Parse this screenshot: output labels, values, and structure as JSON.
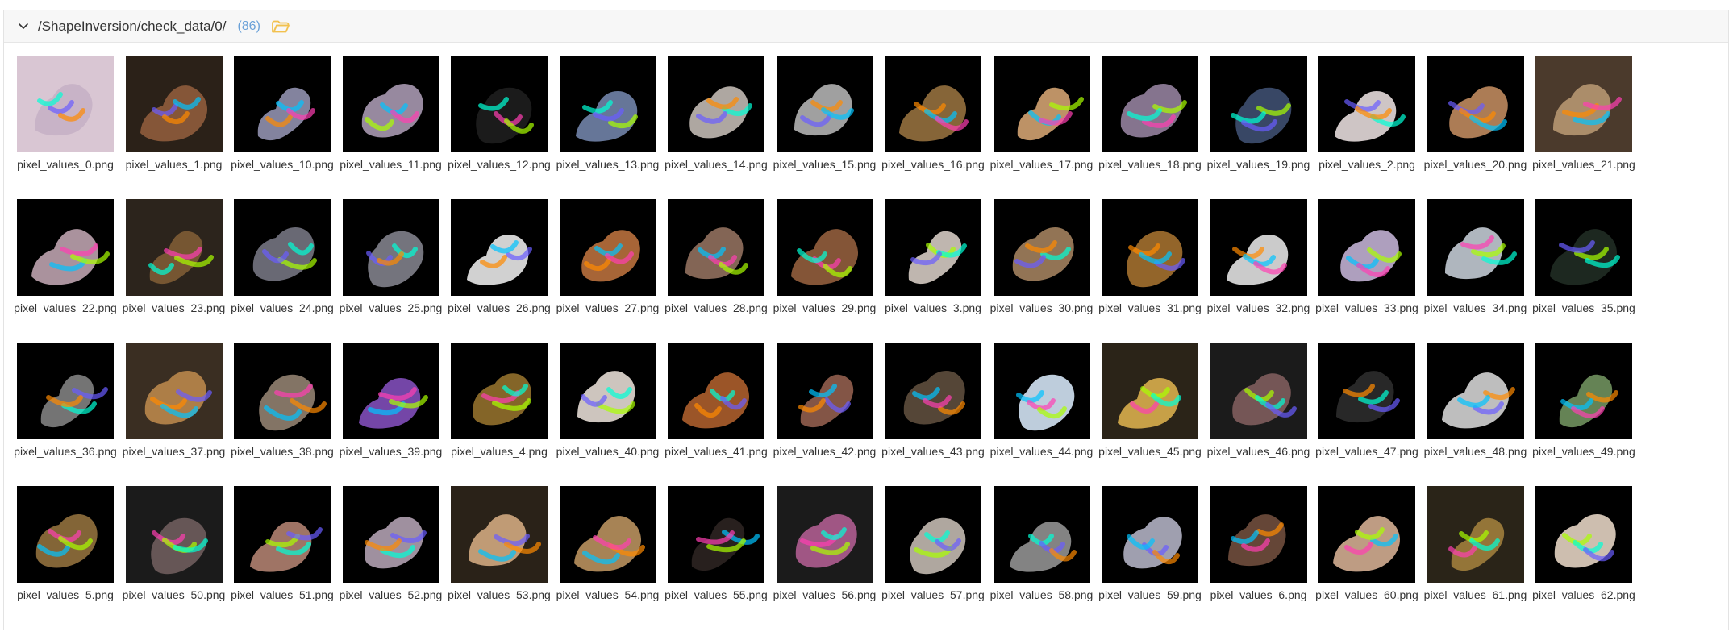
{
  "header": {
    "path": "/ShapeInversion/check_data/0/",
    "count": "(86)"
  },
  "colors": {
    "accent": "#6aa1d8",
    "folder": "#f2c14e"
  },
  "files": [
    {
      "name": "pixel_values_0.png",
      "bg": "#d9c6d3",
      "blob": "#c7b2c6"
    },
    {
      "name": "pixel_values_1.png",
      "bg": "#2b2118",
      "blob": "#8a5a3a"
    },
    {
      "name": "pixel_values_10.png",
      "bg": "#000000",
      "blob": "#8a8aa6"
    },
    {
      "name": "pixel_values_11.png",
      "bg": "#000000",
      "blob": "#9f90a8"
    },
    {
      "name": "pixel_values_12.png",
      "bg": "#000000",
      "blob": "#1c1c1c"
    },
    {
      "name": "pixel_values_13.png",
      "bg": "#000000",
      "blob": "#6b7ca0"
    },
    {
      "name": "pixel_values_14.png",
      "bg": "#000000",
      "blob": "#b7b0aa"
    },
    {
      "name": "pixel_values_15.png",
      "bg": "#000000",
      "blob": "#a9a9a9"
    },
    {
      "name": "pixel_values_16.png",
      "bg": "#000000",
      "blob": "#8d6a3b"
    },
    {
      "name": "pixel_values_17.png",
      "bg": "#000000",
      "blob": "#c79a6b"
    },
    {
      "name": "pixel_values_18.png",
      "bg": "#000000",
      "blob": "#8c7a96"
    },
    {
      "name": "pixel_values_19.png",
      "bg": "#000000",
      "blob": "#3b4b6a"
    },
    {
      "name": "pixel_values_2.png",
      "bg": "#000000",
      "blob": "#d9d0d0"
    },
    {
      "name": "pixel_values_20.png",
      "bg": "#000000",
      "blob": "#b5835a"
    },
    {
      "name": "pixel_values_21.png",
      "bg": "#4b3a2c",
      "blob": "#b0916e"
    },
    {
      "name": "pixel_values_22.png",
      "bg": "#000000",
      "blob": "#b39aa5"
    },
    {
      "name": "pixel_values_23.png",
      "bg": "#2c241c",
      "blob": "#7a5a34"
    },
    {
      "name": "pixel_values_24.png",
      "bg": "#000000",
      "blob": "#6f6f7a"
    },
    {
      "name": "pixel_values_25.png",
      "bg": "#000000",
      "blob": "#7a7a84"
    },
    {
      "name": "pixel_values_26.png",
      "bg": "#000000",
      "blob": "#dcdcdc"
    },
    {
      "name": "pixel_values_27.png",
      "bg": "#000000",
      "blob": "#b06a3a"
    },
    {
      "name": "pixel_values_28.png",
      "bg": "#000000",
      "blob": "#8a6a5a"
    },
    {
      "name": "pixel_values_29.png",
      "bg": "#000000",
      "blob": "#8b5a3a"
    },
    {
      "name": "pixel_values_3.png",
      "bg": "#000000",
      "blob": "#c9c0b8"
    },
    {
      "name": "pixel_values_30.png",
      "bg": "#000000",
      "blob": "#9a7a5a"
    },
    {
      "name": "pixel_values_31.png",
      "bg": "#000000",
      "blob": "#9b6a2c"
    },
    {
      "name": "pixel_values_32.png",
      "bg": "#000000",
      "blob": "#d6d6d6"
    },
    {
      "name": "pixel_values_33.png",
      "bg": "#000000",
      "blob": "#b7a8c8"
    },
    {
      "name": "pixel_values_34.png",
      "bg": "#000000",
      "blob": "#b8c0c8"
    },
    {
      "name": "pixel_values_35.png",
      "bg": "#000000",
      "blob": "#1f2a22"
    },
    {
      "name": "pixel_values_36.png",
      "bg": "#000000",
      "blob": "#7a7a7a"
    },
    {
      "name": "pixel_values_37.png",
      "bg": "#3a2e22",
      "blob": "#b3834a"
    },
    {
      "name": "pixel_values_38.png",
      "bg": "#000000",
      "blob": "#8a7a6a"
    },
    {
      "name": "pixel_values_39.png",
      "bg": "#000000",
      "blob": "#7a4ab0"
    },
    {
      "name": "pixel_values_4.png",
      "bg": "#000000",
      "blob": "#8b6a2a"
    },
    {
      "name": "pixel_values_40.png",
      "bg": "#000000",
      "blob": "#d8d0c8"
    },
    {
      "name": "pixel_values_41.png",
      "bg": "#000000",
      "blob": "#a35a2a"
    },
    {
      "name": "pixel_values_42.png",
      "bg": "#000000",
      "blob": "#8a5a4a"
    },
    {
      "name": "pixel_values_43.png",
      "bg": "#000000",
      "blob": "#5a4a3a"
    },
    {
      "name": "pixel_values_44.png",
      "bg": "#000000",
      "blob": "#c8d8e8"
    },
    {
      "name": "pixel_values_45.png",
      "bg": "#2b2418",
      "blob": "#d0a84a"
    },
    {
      "name": "pixel_values_46.png",
      "bg": "#1b1b1b",
      "blob": "#7a5a5a"
    },
    {
      "name": "pixel_values_47.png",
      "bg": "#000000",
      "blob": "#2a2a2a"
    },
    {
      "name": "pixel_values_48.png",
      "bg": "#000000",
      "blob": "#c8c8c8"
    },
    {
      "name": "pixel_values_49.png",
      "bg": "#000000",
      "blob": "#6a8a5a"
    },
    {
      "name": "pixel_values_5.png",
      "bg": "#000000",
      "blob": "#8a6a3a"
    },
    {
      "name": "pixel_values_50.png",
      "bg": "#1b1b1b",
      "blob": "#6a5a5a"
    },
    {
      "name": "pixel_values_51.png",
      "bg": "#000000",
      "blob": "#a87a6a"
    },
    {
      "name": "pixel_values_52.png",
      "bg": "#000000",
      "blob": "#a898a8"
    },
    {
      "name": "pixel_values_53.png",
      "bg": "#2a2218",
      "blob": "#c8a27a"
    },
    {
      "name": "pixel_values_54.png",
      "bg": "#000000",
      "blob": "#b08a5a"
    },
    {
      "name": "pixel_values_55.png",
      "bg": "#000000",
      "blob": "#2a2220"
    },
    {
      "name": "pixel_values_56.png",
      "bg": "#1b1b1b",
      "blob": "#a85a8a"
    },
    {
      "name": "pixel_values_57.png",
      "bg": "#000000",
      "blob": "#b8b0a8"
    },
    {
      "name": "pixel_values_58.png",
      "bg": "#000000",
      "blob": "#8a8a8a"
    },
    {
      "name": "pixel_values_59.png",
      "bg": "#000000",
      "blob": "#a8a8b8"
    },
    {
      "name": "pixel_values_6.png",
      "bg": "#000000",
      "blob": "#6a4a3a"
    },
    {
      "name": "pixel_values_60.png",
      "bg": "#000000",
      "blob": "#c8a48a"
    },
    {
      "name": "pixel_values_61.png",
      "bg": "#2a2418",
      "blob": "#9a7a3a"
    },
    {
      "name": "pixel_values_62.png",
      "bg": "#000000",
      "blob": "#d8c8b8"
    }
  ]
}
